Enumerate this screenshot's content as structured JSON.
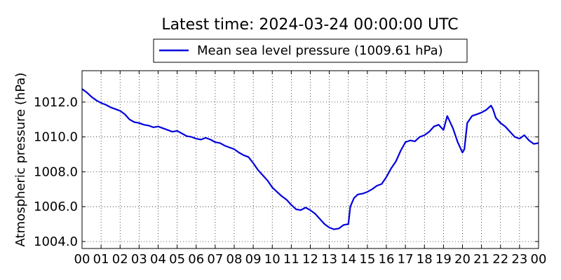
{
  "chart_data": {
    "type": "line",
    "title": "Latest time: 2024-03-24 00:00:00 UTC",
    "xlabel": "",
    "ylabel": "Atmospheric pressure (hPa)",
    "xlim": [
      0,
      24
    ],
    "ylim": [
      1003.6,
      1013.8
    ],
    "x_ticks": [
      "00",
      "01",
      "02",
      "03",
      "04",
      "05",
      "06",
      "07",
      "08",
      "09",
      "10",
      "11",
      "12",
      "13",
      "14",
      "15",
      "16",
      "17",
      "18",
      "19",
      "20",
      "21",
      "22",
      "23",
      "00"
    ],
    "y_ticks": [
      {
        "value": 1004.0,
        "label": "1004.0"
      },
      {
        "value": 1006.0,
        "label": "1006.0"
      },
      {
        "value": 1008.0,
        "label": "1008.0"
      },
      {
        "value": 1010.0,
        "label": "1010.0"
      },
      {
        "value": 1012.0,
        "label": "1012.0"
      }
    ],
    "grid": true,
    "legend_position": "top-center",
    "series": [
      {
        "name": "Mean sea level pressure (1009.61 hPa)",
        "color": "#0000dd",
        "x": [
          0,
          0.25,
          0.5,
          0.75,
          1.0,
          1.25,
          1.5,
          1.75,
          2.0,
          2.25,
          2.5,
          2.75,
          3.0,
          3.25,
          3.5,
          3.75,
          4.0,
          4.25,
          4.5,
          4.75,
          5.0,
          5.25,
          5.5,
          5.75,
          6.0,
          6.25,
          6.5,
          6.75,
          7.0,
          7.25,
          7.5,
          7.75,
          8.0,
          8.25,
          8.5,
          8.75,
          9.0,
          9.25,
          9.5,
          9.75,
          10.0,
          10.25,
          10.5,
          10.75,
          11.0,
          11.25,
          11.5,
          11.75,
          12.0,
          12.25,
          12.5,
          12.75,
          13.0,
          13.25,
          13.5,
          13.75,
          14.0,
          14.1,
          14.3,
          14.5,
          14.75,
          15.0,
          15.25,
          15.5,
          15.75,
          16.0,
          16.25,
          16.5,
          16.75,
          17.0,
          17.25,
          17.5,
          17.75,
          18.0,
          18.25,
          18.5,
          18.75,
          19.0,
          19.2,
          19.5,
          19.75,
          20.0,
          20.1,
          20.25,
          20.5,
          20.75,
          21.0,
          21.25,
          21.5,
          21.6,
          21.75,
          22.0,
          22.25,
          22.5,
          22.75,
          23.0,
          23.25,
          23.5,
          23.75,
          24.0
        ],
        "values": [
          1012.75,
          1012.55,
          1012.3,
          1012.1,
          1011.95,
          1011.85,
          1011.7,
          1011.6,
          1011.5,
          1011.3,
          1011.0,
          1010.85,
          1010.8,
          1010.7,
          1010.65,
          1010.55,
          1010.6,
          1010.5,
          1010.4,
          1010.3,
          1010.35,
          1010.2,
          1010.05,
          1010.0,
          1009.9,
          1009.85,
          1009.95,
          1009.85,
          1009.7,
          1009.65,
          1009.5,
          1009.4,
          1009.3,
          1009.1,
          1008.95,
          1008.85,
          1008.5,
          1008.1,
          1007.8,
          1007.5,
          1007.1,
          1006.85,
          1006.6,
          1006.4,
          1006.1,
          1005.85,
          1005.8,
          1005.95,
          1005.8,
          1005.6,
          1005.3,
          1005.0,
          1004.8,
          1004.7,
          1004.75,
          1004.95,
          1005.0,
          1006.0,
          1006.5,
          1006.7,
          1006.75,
          1006.85,
          1007.0,
          1007.2,
          1007.3,
          1007.7,
          1008.2,
          1008.6,
          1009.2,
          1009.7,
          1009.8,
          1009.75,
          1010.0,
          1010.1,
          1010.3,
          1010.6,
          1010.7,
          1010.4,
          1011.2,
          1010.5,
          1009.7,
          1009.1,
          1009.3,
          1010.8,
          1011.2,
          1011.3,
          1011.4,
          1011.55,
          1011.8,
          1011.6,
          1011.1,
          1010.8,
          1010.6,
          1010.3,
          1010.0,
          1009.9,
          1010.1,
          1009.8,
          1009.6,
          1009.65
        ]
      }
    ]
  }
}
